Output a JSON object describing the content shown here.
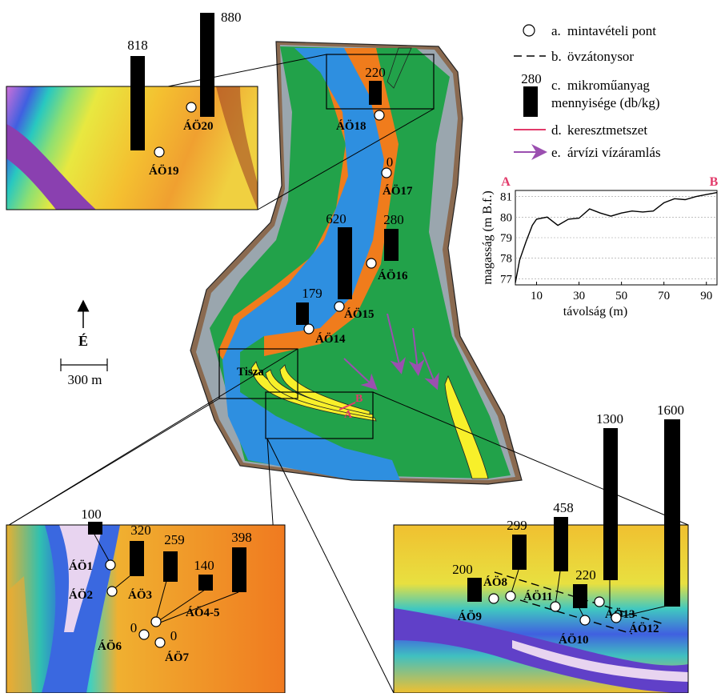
{
  "colors": {
    "river": "#2e8fe0",
    "floodplain": "#22a24a",
    "levee": "#9aa6ae",
    "sand": "#f07c1c",
    "bar": "#f8f02a",
    "bank": "#8a6a50",
    "section": "#e23a6a",
    "flow": "#9b4fb0"
  },
  "north": {
    "label": "É"
  },
  "scale": {
    "label": "300 m"
  },
  "river_name": "Tisza",
  "legend": [
    {
      "symbol": "circle-icon",
      "letter": "a.",
      "text": "mintavételi pont"
    },
    {
      "symbol": "dashed-line-icon",
      "letter": "b.",
      "text": "övzátonysor"
    },
    {
      "symbol": "bar-icon",
      "value": "280",
      "letter": "c.",
      "text": "mikroműanyag",
      "text2": "mennyisége (db/kg)"
    },
    {
      "symbol": "line-icon",
      "letter": "d.",
      "text": "keresztmetszet"
    },
    {
      "symbol": "arrow-icon",
      "letter": "e.",
      "text": "árvízi vízáramlás"
    }
  ],
  "section_ends": {
    "start": "A",
    "end": "B"
  },
  "samples_main": [
    {
      "id": "ÁÖ18",
      "value": "220"
    },
    {
      "id": "ÁÖ17",
      "value": "0"
    },
    {
      "id": "ÁÖ16",
      "value": "280"
    },
    {
      "id": "ÁÖ15",
      "value": "620"
    },
    {
      "id": "ÁÖ14",
      "value": "179"
    }
  ],
  "samples_top": [
    {
      "id": "ÁÖ19",
      "value": "818"
    },
    {
      "id": "ÁÖ20",
      "value": "880"
    }
  ],
  "samples_bl": [
    {
      "id": "ÁÖ1",
      "value": "100"
    },
    {
      "id": "ÁÖ2",
      "value": "320"
    },
    {
      "id": "ÁÖ3",
      "value": "259"
    },
    {
      "id": "ÁÖ4-5",
      "value": "140"
    },
    {
      "id": "ÁÖ4-5",
      "value": "398"
    },
    {
      "id": "ÁÖ6",
      "value": "0"
    },
    {
      "id": "ÁÖ7",
      "value": "0"
    }
  ],
  "samples_br": [
    {
      "id": "ÁÖ9",
      "value": "200"
    },
    {
      "id": "ÁÖ8",
      "value": "299"
    },
    {
      "id": "ÁÖ11",
      "value": "458"
    },
    {
      "id": "ÁÖ10",
      "value": "220"
    },
    {
      "id": "ÁÖ13",
      "value": "1300"
    },
    {
      "id": "ÁÖ12",
      "value": "1600"
    }
  ],
  "chart_data": {
    "type": "line",
    "xlabel": "távolság (m)",
    "ylabel": "magasság (m B.f.)",
    "xticks": [
      "10",
      "30",
      "50",
      "70",
      "90"
    ],
    "yticks": [
      "77",
      "78",
      "79",
      "80",
      "81"
    ],
    "xlim": [
      0,
      95
    ],
    "ylim": [
      76.7,
      81.3
    ],
    "grid": true,
    "corner_left": "A",
    "corner_right": "B",
    "x": [
      0,
      2,
      5,
      8,
      10,
      15,
      20,
      25,
      30,
      35,
      40,
      45,
      50,
      55,
      60,
      65,
      70,
      75,
      80,
      85,
      90,
      95
    ],
    "y": [
      76.8,
      77.9,
      78.8,
      79.6,
      79.9,
      80.0,
      79.6,
      79.9,
      79.95,
      80.4,
      80.2,
      80.05,
      80.2,
      80.3,
      80.25,
      80.3,
      80.7,
      80.9,
      80.85,
      81.0,
      81.1,
      81.2
    ]
  }
}
